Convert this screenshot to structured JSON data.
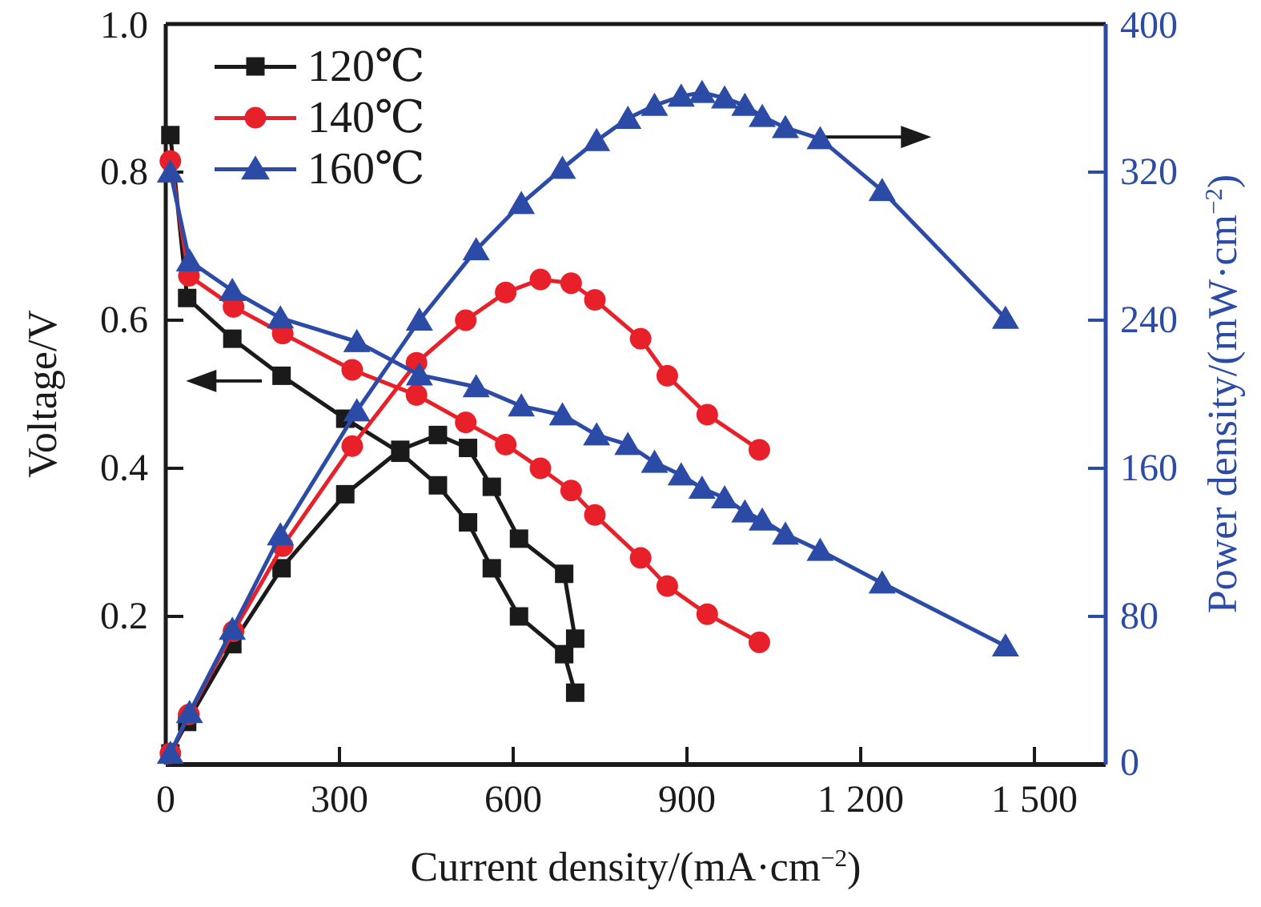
{
  "chart_data": {
    "type": "line",
    "title": "",
    "description": "Polarization (voltage) and power-density curves of a fuel cell at three operating temperatures",
    "x_axis": {
      "title_parts": [
        "Current density/(mA·cm",
        "−2",
        ")"
      ],
      "tick_labels": [
        "0",
        "300",
        "600",
        "900",
        "1 200",
        "1 500"
      ],
      "tick_values": [
        0,
        300,
        600,
        900,
        1200,
        1500
      ],
      "range": [
        0,
        1623
      ],
      "grid": false
    },
    "y_left_axis": {
      "title": "Voltage/V",
      "tick_labels": [
        "0.2",
        "0.4",
        "0.6",
        "0.8",
        "1.0"
      ],
      "tick_values": [
        0.2,
        0.4,
        0.6,
        0.8,
        1.0
      ],
      "range": [
        0,
        1.0
      ],
      "color": "#1a1a1a"
    },
    "y_right_axis": {
      "title_parts": [
        "Power density/(mW·cm",
        "−2",
        ")"
      ],
      "tick_labels": [
        "0",
        "80",
        "160",
        "240",
        "320",
        "400"
      ],
      "tick_values": [
        0,
        80,
        160,
        240,
        320,
        400
      ],
      "range": [
        0,
        400
      ],
      "color": "#2b4ba6"
    },
    "legend": {
      "position": "top-left",
      "items": [
        {
          "label": "120℃"
        },
        {
          "label": "140℃"
        },
        {
          "label": "160℃"
        }
      ]
    },
    "series": [
      {
        "name": "120℃",
        "color": "#1a1a1a",
        "marker": "square",
        "voltage_points_mA_V": [
          [
            8,
            0.85
          ],
          [
            37,
            0.63
          ],
          [
            115,
            0.575
          ],
          [
            200,
            0.525
          ],
          [
            310,
            0.467
          ],
          [
            405,
            0.421
          ],
          [
            470,
            0.377
          ],
          [
            522,
            0.327
          ],
          [
            563,
            0.265
          ],
          [
            610,
            0.2
          ],
          [
            688,
            0.149
          ],
          [
            707,
            0.097
          ]
        ],
        "power_points_mA_mW": [
          [
            0,
            0
          ],
          [
            8,
            6
          ],
          [
            37,
            23
          ],
          [
            115,
            65
          ],
          [
            200,
            106
          ],
          [
            310,
            146
          ],
          [
            405,
            170
          ],
          [
            470,
            178
          ],
          [
            522,
            171
          ],
          [
            563,
            150
          ],
          [
            610,
            122
          ],
          [
            688,
            103
          ],
          [
            707,
            68
          ]
        ]
      },
      {
        "name": "140℃",
        "color": "#e8202a",
        "marker": "circle",
        "voltage_points_mA_V": [
          [
            8,
            0.815
          ],
          [
            40,
            0.66
          ],
          [
            117,
            0.618
          ],
          [
            202,
            0.582
          ],
          [
            322,
            0.533
          ],
          [
            433,
            0.499
          ],
          [
            518,
            0.462
          ],
          [
            587,
            0.432
          ],
          [
            647,
            0.4
          ],
          [
            700,
            0.37
          ],
          [
            741,
            0.337
          ],
          [
            820,
            0.279
          ],
          [
            866,
            0.241
          ],
          [
            935,
            0.203
          ],
          [
            1025,
            0.165
          ]
        ],
        "power_points_mA_mW": [
          [
            0,
            0
          ],
          [
            8,
            6
          ],
          [
            40,
            27
          ],
          [
            117,
            72
          ],
          [
            202,
            118
          ],
          [
            322,
            172
          ],
          [
            433,
            217
          ],
          [
            518,
            240
          ],
          [
            587,
            255
          ],
          [
            647,
            262
          ],
          [
            700,
            260
          ],
          [
            741,
            251
          ],
          [
            820,
            230
          ],
          [
            866,
            210
          ],
          [
            935,
            189
          ],
          [
            1025,
            170
          ]
        ]
      },
      {
        "name": "160℃",
        "color": "#2b4ba6",
        "marker": "triangle",
        "voltage_points_mA_V": [
          [
            8,
            0.8
          ],
          [
            41,
            0.68
          ],
          [
            115,
            0.64
          ],
          [
            198,
            0.603
          ],
          [
            330,
            0.571
          ],
          [
            438,
            0.526
          ],
          [
            536,
            0.51
          ],
          [
            614,
            0.484
          ],
          [
            685,
            0.472
          ],
          [
            744,
            0.445
          ],
          [
            798,
            0.432
          ],
          [
            844,
            0.408
          ],
          [
            890,
            0.391
          ],
          [
            926,
            0.373
          ],
          [
            965,
            0.36
          ],
          [
            1000,
            0.341
          ],
          [
            1030,
            0.33
          ],
          [
            1070,
            0.311
          ],
          [
            1130,
            0.289
          ],
          [
            1237,
            0.245
          ],
          [
            1450,
            0.16
          ]
        ],
        "power_points_mA_mW": [
          [
            0,
            0
          ],
          [
            8,
            6
          ],
          [
            41,
            28
          ],
          [
            115,
            73
          ],
          [
            198,
            124
          ],
          [
            330,
            191
          ],
          [
            438,
            240
          ],
          [
            536,
            278
          ],
          [
            614,
            303
          ],
          [
            685,
            322
          ],
          [
            744,
            337
          ],
          [
            798,
            349
          ],
          [
            844,
            356
          ],
          [
            890,
            361
          ],
          [
            926,
            363
          ],
          [
            965,
            360
          ],
          [
            1000,
            356
          ],
          [
            1030,
            350
          ],
          [
            1070,
            344
          ],
          [
            1130,
            338
          ],
          [
            1237,
            310
          ],
          [
            1450,
            241
          ]
        ]
      }
    ],
    "annotations": [
      {
        "type": "arrow",
        "points_to": "voltage-axis",
        "y_axis": "voltage",
        "y": 0.518,
        "x_from": 166,
        "x_to": 35,
        "color": "#1a1a1a"
      },
      {
        "type": "arrow",
        "points_to": "power-axis",
        "y_axis": "power",
        "y": 339,
        "x_from": 1134,
        "x_to": 1322,
        "color": "#1a1a1a"
      }
    ]
  }
}
